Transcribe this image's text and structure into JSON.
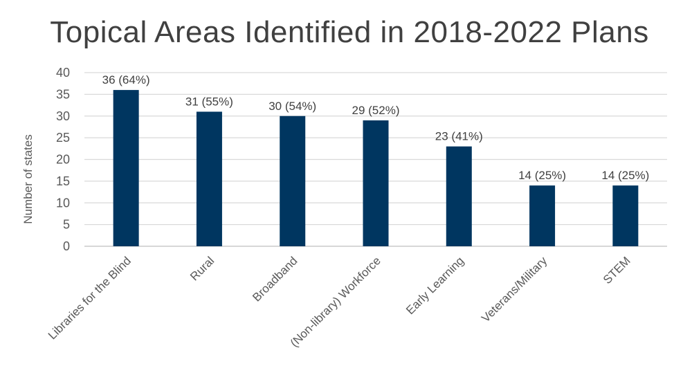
{
  "chart_data": {
    "type": "bar",
    "title": "Topical Areas Identified in 2018-2022 Plans",
    "xlabel": "",
    "ylabel": "Number of states",
    "ylim": [
      0,
      40
    ],
    "yticks": [
      0,
      5,
      10,
      15,
      20,
      25,
      30,
      35,
      40
    ],
    "grid": true,
    "legend": "none",
    "bar_color": "#003660",
    "categories": [
      "Libraries for the Blind",
      "Rural",
      "Broadband",
      "(Non-library) Workforce",
      "Early Learning",
      "Veterans/Military",
      "STEM"
    ],
    "values": [
      36,
      31,
      30,
      29,
      23,
      14,
      14
    ],
    "data_labels": [
      "36 (64%)",
      "31 (55%)",
      "30 (54%)",
      "29 (52%)",
      "23 (41%)",
      "14 (25%)",
      "14 (25%)"
    ]
  }
}
